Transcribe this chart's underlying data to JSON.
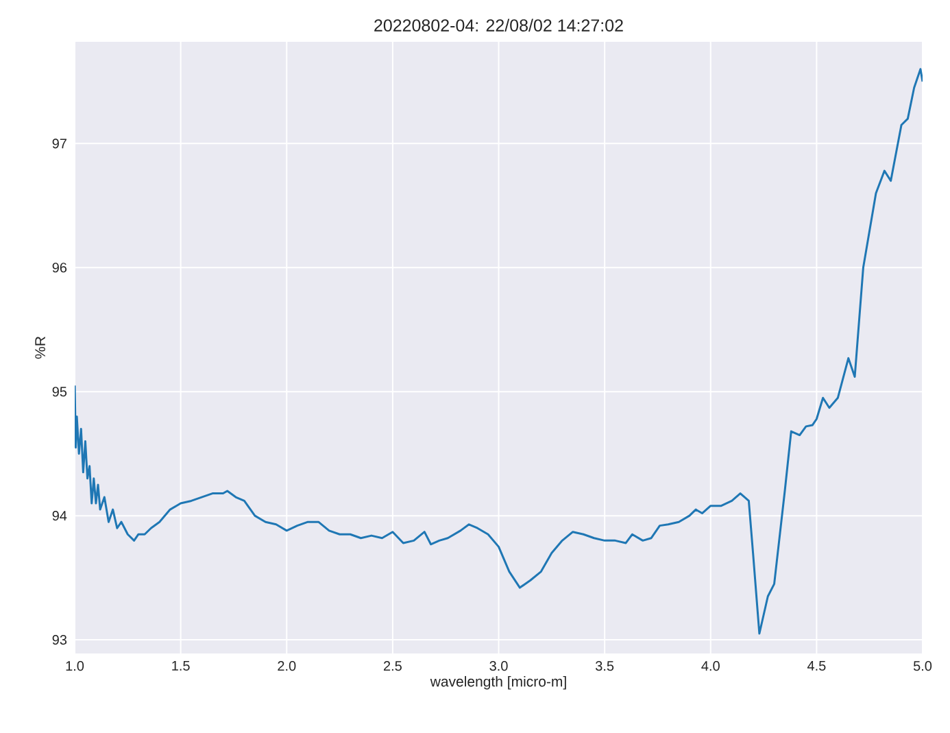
{
  "chart_data": {
    "type": "line",
    "title": "20220802-04:  22/08/02 14:27:02",
    "xlabel": "wavelength [micro-m]",
    "ylabel": "%R",
    "xlim": [
      1.0,
      5.0
    ],
    "ylim": [
      92.89,
      97.82
    ],
    "xticks": [
      {
        "value": 1.0,
        "label": "1.0"
      },
      {
        "value": 1.5,
        "label": "1.5"
      },
      {
        "value": 2.0,
        "label": "2.0"
      },
      {
        "value": 2.5,
        "label": "2.5"
      },
      {
        "value": 3.0,
        "label": "3.0"
      },
      {
        "value": 3.5,
        "label": "3.5"
      },
      {
        "value": 4.0,
        "label": "4.0"
      },
      {
        "value": 4.5,
        "label": "4.5"
      },
      {
        "value": 5.0,
        "label": "5.0"
      }
    ],
    "yticks": [
      93,
      94,
      95,
      96,
      97
    ],
    "grid": true,
    "series": [
      {
        "color": "#1f77b4",
        "x": [
          1.0,
          1.005,
          1.01,
          1.02,
          1.03,
          1.04,
          1.05,
          1.06,
          1.07,
          1.08,
          1.09,
          1.1,
          1.11,
          1.12,
          1.14,
          1.16,
          1.18,
          1.2,
          1.22,
          1.25,
          1.28,
          1.3,
          1.33,
          1.36,
          1.4,
          1.45,
          1.5,
          1.55,
          1.6,
          1.65,
          1.7,
          1.72,
          1.76,
          1.8,
          1.85,
          1.9,
          1.95,
          2.0,
          2.05,
          2.1,
          2.15,
          2.2,
          2.25,
          2.3,
          2.35,
          2.4,
          2.45,
          2.5,
          2.55,
          2.6,
          2.65,
          2.68,
          2.72,
          2.76,
          2.82,
          2.86,
          2.9,
          2.95,
          3.0,
          3.05,
          3.1,
          3.15,
          3.2,
          3.25,
          3.3,
          3.35,
          3.4,
          3.45,
          3.5,
          3.55,
          3.6,
          3.63,
          3.68,
          3.72,
          3.76,
          3.8,
          3.85,
          3.9,
          3.93,
          3.96,
          4.0,
          4.05,
          4.1,
          4.14,
          4.18,
          4.2,
          4.23,
          4.27,
          4.3,
          4.35,
          4.38,
          4.42,
          4.45,
          4.48,
          4.5,
          4.53,
          4.56,
          4.6,
          4.65,
          4.68,
          4.72,
          4.78,
          4.82,
          4.85,
          4.9,
          4.93,
          4.96,
          4.99,
          5.0
        ],
        "values": [
          95.05,
          94.55,
          94.8,
          94.5,
          94.7,
          94.35,
          94.6,
          94.3,
          94.4,
          94.1,
          94.3,
          94.1,
          94.25,
          94.05,
          94.15,
          93.95,
          94.05,
          93.9,
          93.95,
          93.85,
          93.8,
          93.85,
          93.85,
          93.9,
          93.95,
          94.05,
          94.1,
          94.12,
          94.15,
          94.18,
          94.18,
          94.2,
          94.15,
          94.12,
          94.0,
          93.95,
          93.93,
          93.88,
          93.92,
          93.95,
          93.95,
          93.88,
          93.85,
          93.85,
          93.82,
          93.84,
          93.82,
          93.87,
          93.78,
          93.8,
          93.87,
          93.77,
          93.8,
          93.82,
          93.88,
          93.93,
          93.9,
          93.85,
          93.75,
          93.55,
          93.42,
          93.48,
          93.55,
          93.7,
          93.8,
          93.87,
          93.85,
          93.82,
          93.8,
          93.8,
          93.78,
          93.85,
          93.8,
          93.82,
          93.92,
          93.93,
          93.95,
          94.0,
          94.05,
          94.02,
          94.08,
          94.08,
          94.12,
          94.18,
          94.12,
          93.7,
          93.05,
          93.35,
          93.45,
          94.2,
          94.68,
          94.65,
          94.72,
          94.73,
          94.78,
          94.95,
          94.87,
          94.95,
          95.27,
          95.12,
          96.0,
          96.6,
          96.78,
          96.7,
          97.15,
          97.2,
          97.45,
          97.6,
          97.5
        ]
      }
    ]
  }
}
